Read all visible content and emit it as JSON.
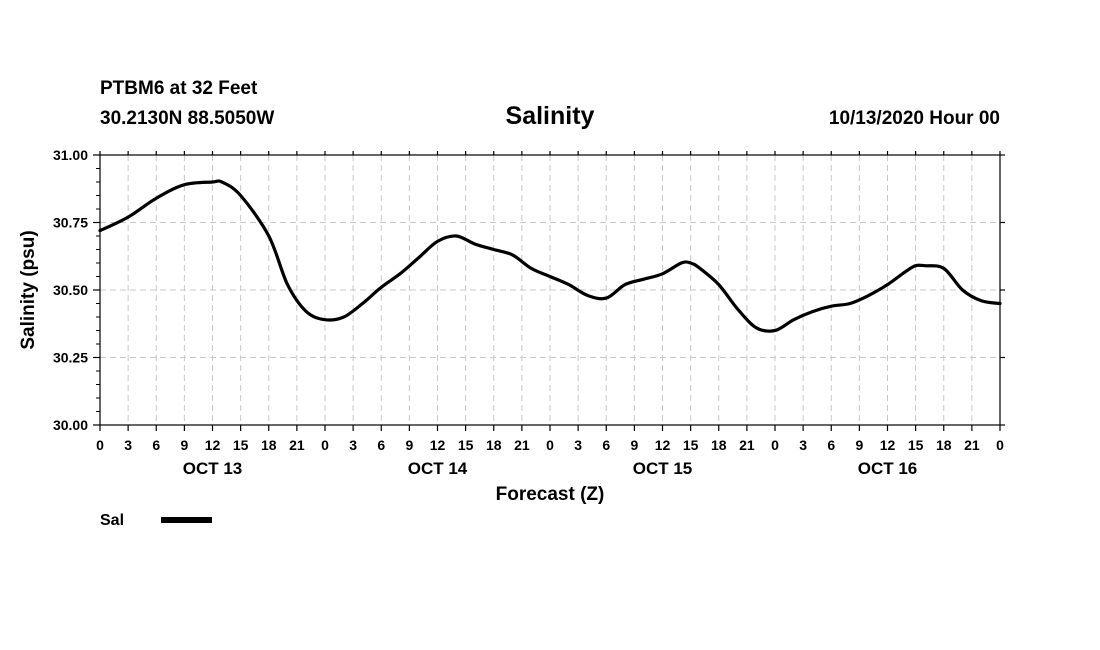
{
  "header": {
    "station": "PTBM6 at 32 Feet",
    "location": "30.2130N 88.5050W",
    "title": "Salinity",
    "datetime": "10/13/2020 Hour 00"
  },
  "chart_data": {
    "type": "line",
    "title": "Salinity",
    "xlabel": "Forecast (Z)",
    "ylabel": "Salinity (psu)",
    "ylim": [
      30.0,
      31.0
    ],
    "yticks": [
      "31.00",
      "30.75",
      "30.50",
      "30.25",
      "30.00"
    ],
    "xlim_hours": [
      0,
      96
    ],
    "xtick_labels": [
      "0",
      "3",
      "6",
      "9",
      "12",
      "15",
      "18",
      "21",
      "0",
      "3",
      "6",
      "9",
      "12",
      "15",
      "18",
      "21",
      "0",
      "3",
      "6",
      "9",
      "12",
      "15",
      "18",
      "21",
      "0",
      "3",
      "6",
      "9",
      "12",
      "15",
      "18",
      "21",
      "0"
    ],
    "day_labels": [
      {
        "label": "OCT 13",
        "center_hour": 12
      },
      {
        "label": "OCT 14",
        "center_hour": 36
      },
      {
        "label": "OCT 15",
        "center_hour": 60
      },
      {
        "label": "OCT 16",
        "center_hour": 84
      }
    ],
    "grid": true,
    "series": [
      {
        "name": "Sal",
        "x": [
          0,
          3,
          6,
          9,
          12,
          13,
          15,
          18,
          20,
          22,
          24,
          26,
          28,
          30,
          32,
          34,
          36,
          38,
          40,
          42,
          44,
          46,
          48,
          50,
          52,
          54,
          56,
          58,
          60,
          62,
          63,
          64,
          66,
          68,
          70,
          72,
          74,
          76,
          78,
          80,
          82,
          84,
          86,
          87,
          88,
          90,
          92,
          94,
          96
        ],
        "values": [
          30.72,
          30.77,
          30.84,
          30.89,
          30.9,
          30.9,
          30.85,
          30.7,
          30.52,
          30.42,
          30.39,
          30.4,
          30.45,
          30.51,
          30.56,
          30.62,
          30.68,
          30.7,
          30.67,
          30.65,
          30.63,
          30.58,
          30.55,
          30.52,
          30.48,
          30.47,
          30.52,
          30.54,
          30.56,
          30.6,
          30.6,
          30.58,
          30.52,
          30.43,
          30.36,
          30.35,
          30.39,
          30.42,
          30.44,
          30.45,
          30.48,
          30.52,
          30.57,
          30.59,
          30.59,
          30.58,
          30.5,
          30.46,
          30.45
        ]
      }
    ],
    "legend": {
      "position": "bottom-left",
      "entries": [
        "Sal"
      ]
    }
  }
}
